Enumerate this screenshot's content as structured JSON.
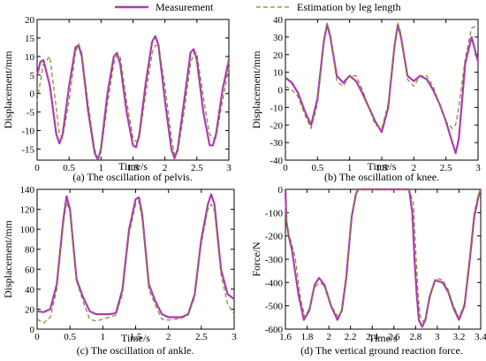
{
  "legend": {
    "measurement": "Measurement",
    "estimation": "Estimation by leg length",
    "measurement_color": "#b03ab0",
    "estimation_color": "#7a8a2a"
  },
  "chart_data": [
    {
      "type": "line",
      "caption": "(a) The oscillation of pelvis.",
      "xlabel": "Time/s",
      "ylabel": "Displacement/mm",
      "xlim": [
        0,
        3
      ],
      "ylim": [
        -18,
        20
      ],
      "xticks": [
        0,
        0.5,
        1,
        1.5,
        2,
        2.5,
        3
      ],
      "xtick_labels": [
        "0",
        "0.5",
        "1",
        "1.5",
        "2",
        "2.5",
        "3"
      ],
      "yticks": [
        -15,
        -10,
        -5,
        0,
        5,
        10,
        15,
        20
      ],
      "ytick_labels": [
        "-15",
        "-10",
        "-5",
        "0",
        "5",
        "10",
        "15",
        "20"
      ],
      "series": [
        {
          "name": "Measurement",
          "style": "solid",
          "x": [
            0,
            0.05,
            0.1,
            0.2,
            0.3,
            0.35,
            0.4,
            0.5,
            0.6,
            0.65,
            0.7,
            0.8,
            0.9,
            0.95,
            1.0,
            1.1,
            1.2,
            1.25,
            1.3,
            1.4,
            1.5,
            1.55,
            1.6,
            1.7,
            1.8,
            1.85,
            1.9,
            2.0,
            2.1,
            2.15,
            2.2,
            2.3,
            2.4,
            2.45,
            2.5,
            2.6,
            2.7,
            2.75,
            2.8,
            2.9,
            3.0
          ],
          "y": [
            5,
            8.5,
            9,
            2,
            -11,
            -13.5,
            -11,
            2,
            12.5,
            13,
            10,
            -5,
            -16,
            -18,
            -15,
            0,
            10,
            11,
            8,
            -5,
            -14,
            -14.5,
            -11,
            3,
            14,
            15.5,
            13,
            -2,
            -15,
            -17.5,
            -15,
            -2,
            11,
            12,
            9,
            -5,
            -14,
            -14,
            -11,
            1,
            9
          ]
        },
        {
          "name": "Estimation by leg length",
          "style": "dashed",
          "x": [
            0,
            0.05,
            0.1,
            0.2,
            0.3,
            0.35,
            0.4,
            0.5,
            0.6,
            0.65,
            0.7,
            0.8,
            0.9,
            0.95,
            1.0,
            1.1,
            1.2,
            1.25,
            1.3,
            1.4,
            1.5,
            1.55,
            1.6,
            1.7,
            1.8,
            1.85,
            1.9,
            2.0,
            2.1,
            2.15,
            2.2,
            2.3,
            2.4,
            2.45,
            2.5,
            2.6,
            2.7,
            2.75,
            2.8,
            2.9,
            3.0
          ],
          "y": [
            -2,
            3,
            8,
            10,
            -4,
            -11,
            -12,
            -2,
            11,
            13.5,
            11,
            -3,
            -15,
            -17.5,
            -16,
            -3,
            8,
            10.5,
            10,
            -2,
            -12,
            -13,
            -12,
            0,
            11,
            13,
            13,
            2,
            -12,
            -16.5,
            -16,
            -5,
            8,
            11,
            11,
            -1,
            -11,
            -12,
            -12,
            -2,
            7
          ]
        }
      ]
    },
    {
      "type": "line",
      "caption": "(b) The oscillation of knee.",
      "xlabel": "Time/s",
      "ylabel": "Displacement/mm",
      "xlim": [
        0,
        3
      ],
      "ylim": [
        -40,
        40
      ],
      "xticks": [
        0,
        0.5,
        1,
        1.5,
        2,
        2.5,
        3
      ],
      "xtick_labels": [
        "0",
        "0.5",
        "1",
        "1.5",
        "2",
        "2.5",
        "3"
      ],
      "yticks": [
        -40,
        -30,
        -20,
        -10,
        0,
        10,
        20,
        30,
        40
      ],
      "ytick_labels": [
        "-40",
        "-30",
        "-20",
        "-10",
        "0",
        "10",
        "20",
        "30",
        "40"
      ],
      "series": [
        {
          "name": "Measurement",
          "style": "solid",
          "x": [
            0,
            0.1,
            0.2,
            0.3,
            0.4,
            0.5,
            0.6,
            0.65,
            0.7,
            0.8,
            0.9,
            1.0,
            1.1,
            1.2,
            1.3,
            1.4,
            1.5,
            1.6,
            1.7,
            1.75,
            1.8,
            1.9,
            2.0,
            2.1,
            2.2,
            2.3,
            2.4,
            2.5,
            2.6,
            2.65,
            2.7,
            2.8,
            2.9,
            3.0
          ],
          "y": [
            7,
            4,
            -2,
            -12,
            -20,
            -5,
            28,
            37,
            30,
            8,
            4,
            8,
            5,
            -2,
            -10,
            -18,
            -24,
            -10,
            25,
            37,
            30,
            8,
            5,
            8,
            6,
            0,
            -8,
            -18,
            -30,
            -36,
            -28,
            15,
            30,
            16
          ]
        },
        {
          "name": "Estimation by leg length",
          "style": "dashed",
          "x": [
            0,
            0.1,
            0.2,
            0.3,
            0.4,
            0.5,
            0.6,
            0.65,
            0.7,
            0.8,
            0.9,
            1.0,
            1.1,
            1.2,
            1.3,
            1.4,
            1.5,
            1.6,
            1.7,
            1.75,
            1.8,
            1.9,
            2.0,
            2.1,
            2.2,
            2.3,
            2.4,
            2.5,
            2.6,
            2.65,
            2.7,
            2.8,
            2.9,
            3.0
          ],
          "y": [
            2,
            0,
            -4,
            -14,
            -22,
            -8,
            26,
            38,
            32,
            5,
            2,
            8,
            8,
            0,
            -10,
            -20,
            -22,
            -8,
            26,
            38,
            32,
            6,
            2,
            8,
            8,
            2,
            -8,
            -18,
            -22,
            -20,
            -10,
            18,
            35,
            37
          ]
        }
      ]
    },
    {
      "type": "line",
      "caption": "(c)  The oscillation of ankle.",
      "xlabel": "Time/s",
      "ylabel": "Displacement/mm",
      "xlim": [
        0,
        3
      ],
      "ylim": [
        0,
        140
      ],
      "xticks": [
        0,
        0.5,
        1,
        1.5,
        2,
        2.5,
        3
      ],
      "xtick_labels": [
        "0",
        "0.5",
        "1",
        "1.5",
        "2",
        "2.5",
        "3"
      ],
      "yticks": [
        0,
        20,
        40,
        60,
        80,
        100,
        120,
        140
      ],
      "ytick_labels": [
        "0",
        "20",
        "40",
        "60",
        "80",
        "100",
        "120",
        "140"
      ],
      "series": [
        {
          "name": "Measurement",
          "style": "solid",
          "x": [
            0,
            0.1,
            0.2,
            0.3,
            0.4,
            0.45,
            0.5,
            0.6,
            0.7,
            0.8,
            0.9,
            1.0,
            1.1,
            1.2,
            1.3,
            1.4,
            1.5,
            1.55,
            1.6,
            1.7,
            1.8,
            1.9,
            2.0,
            2.1,
            2.2,
            2.3,
            2.4,
            2.5,
            2.6,
            2.65,
            2.7,
            2.8,
            2.9,
            3.0
          ],
          "y": [
            18,
            17,
            20,
            45,
            110,
            133,
            120,
            50,
            32,
            18,
            15,
            15,
            15,
            16,
            40,
            100,
            130,
            132,
            115,
            45,
            28,
            15,
            12,
            12,
            12,
            15,
            35,
            90,
            125,
            135,
            125,
            60,
            35,
            30
          ]
        },
        {
          "name": "Estimation by leg length",
          "style": "dashed",
          "x": [
            0,
            0.1,
            0.2,
            0.3,
            0.4,
            0.45,
            0.5,
            0.6,
            0.7,
            0.8,
            0.9,
            1.0,
            1.1,
            1.2,
            1.3,
            1.4,
            1.5,
            1.55,
            1.6,
            1.7,
            1.8,
            1.9,
            2.0,
            2.1,
            2.2,
            2.3,
            2.4,
            2.5,
            2.6,
            2.65,
            2.7,
            2.8,
            2.9,
            3.0
          ],
          "y": [
            10,
            6,
            12,
            40,
            105,
            127,
            118,
            48,
            28,
            10,
            8,
            10,
            12,
            14,
            35,
            95,
            125,
            128,
            110,
            40,
            24,
            10,
            9,
            10,
            11,
            14,
            32,
            85,
            120,
            125,
            118,
            55,
            25,
            15
          ]
        }
      ]
    },
    {
      "type": "line",
      "caption": "(d) The vertical ground reaction force.",
      "xlabel": "Time/s",
      "ylabel": "Force/N",
      "xlim": [
        1.6,
        3.4
      ],
      "ylim": [
        -600,
        0
      ],
      "xticks": [
        1.6,
        1.8,
        2,
        2.2,
        2.4,
        2.6,
        2.8,
        3,
        3.2,
        3.4
      ],
      "xtick_labels": [
        "1.6",
        "1.8",
        "2",
        "2.2",
        "2.4",
        "2.6",
        "2.8",
        "3",
        "3.2",
        "3.4"
      ],
      "yticks": [
        -600,
        -500,
        -400,
        -300,
        -200,
        -100,
        0
      ],
      "ytick_labels": [
        "-600",
        "-500",
        "-400",
        "-300",
        "-200",
        "-100",
        "0"
      ],
      "series": [
        {
          "name": "Measurement",
          "style": "solid",
          "x": [
            1.6,
            1.61,
            1.63,
            1.66,
            1.72,
            1.77,
            1.82,
            1.87,
            1.91,
            1.96,
            2.02,
            2.08,
            2.12,
            2.16,
            2.21,
            2.25,
            2.27,
            2.4,
            2.6,
            2.74,
            2.77,
            2.79,
            2.81,
            2.83,
            2.86,
            2.89,
            2.93,
            2.98,
            3.05,
            3.1,
            3.15,
            3.2,
            3.25,
            3.3,
            3.34,
            3.38,
            3.4
          ],
          "y": [
            0,
            -140,
            -200,
            -260,
            -450,
            -560,
            -520,
            -410,
            -380,
            -410,
            -500,
            -560,
            -520,
            -380,
            -120,
            -20,
            0,
            0,
            0,
            0,
            -100,
            -300,
            -450,
            -560,
            -590,
            -560,
            -460,
            -390,
            -400,
            -440,
            -510,
            -560,
            -500,
            -300,
            -120,
            -30,
            0
          ]
        },
        {
          "name": "Estimation by leg length",
          "style": "dashed",
          "x": [
            1.6,
            1.62,
            1.65,
            1.69,
            1.74,
            1.78,
            1.82,
            1.87,
            1.92,
            1.97,
            2.03,
            2.09,
            2.13,
            2.17,
            2.21,
            2.25,
            2.27,
            2.4,
            2.6,
            2.74,
            2.78,
            2.8,
            2.82,
            2.84,
            2.87,
            2.9,
            2.94,
            2.99,
            3.05,
            3.1,
            3.15,
            3.2,
            3.25,
            3.3,
            3.34,
            3.38,
            3.4
          ],
          "y": [
            -60,
            -180,
            -220,
            -290,
            -470,
            -550,
            -510,
            -420,
            -400,
            -420,
            -505,
            -550,
            -500,
            -360,
            -110,
            -20,
            0,
            0,
            0,
            0,
            -60,
            -250,
            -430,
            -540,
            -570,
            -540,
            -450,
            -380,
            -390,
            -430,
            -500,
            -550,
            -490,
            -280,
            -100,
            -20,
            0
          ]
        }
      ]
    }
  ]
}
